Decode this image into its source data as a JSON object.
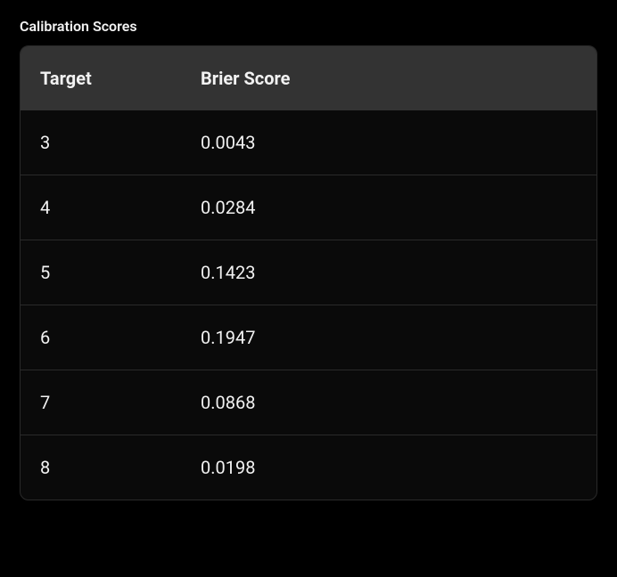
{
  "title": "Calibration Scores",
  "table": {
    "columns": [
      "Target",
      "Brier Score"
    ],
    "rows": [
      [
        "3",
        "0.0043"
      ],
      [
        "4",
        "0.0284"
      ],
      [
        "5",
        "0.1423"
      ],
      [
        "6",
        "0.1947"
      ],
      [
        "7",
        "0.0868"
      ],
      [
        "8",
        "0.0198"
      ]
    ]
  },
  "styles": {
    "background_color": "#000000",
    "table_header_bg": "#333333",
    "row_border_color": "#2a2a2a",
    "text_color": "#f2f2f2",
    "title_fontsize": 16,
    "header_fontsize": 20,
    "cell_fontsize": 20,
    "border_radius": 10
  }
}
